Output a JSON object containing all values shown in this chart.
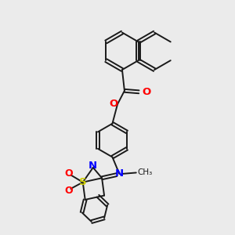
{
  "background_color": "#ebebeb",
  "bond_color": "#1a1a1a",
  "atom_colors": {
    "O": "#ff0000",
    "N": "#0000ff",
    "S": "#cccc00",
    "C": "#1a1a1a"
  },
  "figsize": [
    3.0,
    3.0
  ],
  "dpi": 100
}
